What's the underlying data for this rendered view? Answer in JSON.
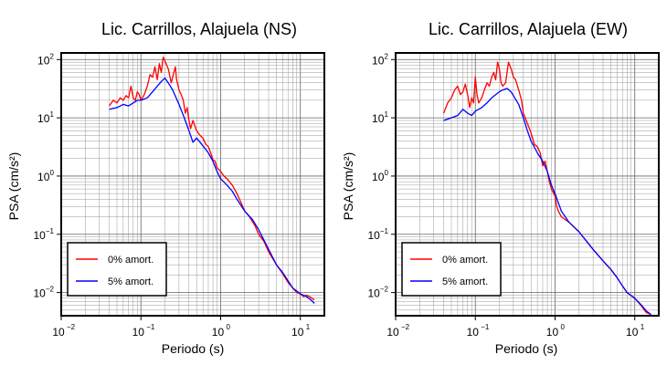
{
  "chart_data": [
    {
      "type": "line",
      "title": "Lic. Carrillos, Alajuela (NS)",
      "xlabel": "Periodo (s)",
      "ylabel": "PSA (cm/s²)",
      "x_scale": "log",
      "y_scale": "log",
      "xlim": [
        0.01,
        20
      ],
      "ylim": [
        0.004,
        130
      ],
      "x_ticks": [
        {
          "value": 0.01,
          "base": "10",
          "exp": "−2"
        },
        {
          "value": 0.1,
          "base": "10",
          "exp": "−1"
        },
        {
          "value": 1,
          "base": "10",
          "exp": "0"
        },
        {
          "value": 10,
          "base": "10",
          "exp": "1"
        }
      ],
      "y_ticks": [
        {
          "value": 0.01,
          "base": "10",
          "exp": "−2"
        },
        {
          "value": 0.1,
          "base": "10",
          "exp": "−1"
        },
        {
          "value": 1,
          "base": "10",
          "exp": "0"
        },
        {
          "value": 10,
          "base": "10",
          "exp": "1"
        },
        {
          "value": 100,
          "base": "10",
          "exp": "2"
        }
      ],
      "grid": true,
      "legend_position": "bottom-left",
      "series": [
        {
          "name": "0% amort.",
          "color": "#ff0000",
          "points": [
            [
              0.04,
              16
            ],
            [
              0.045,
              20
            ],
            [
              0.05,
              18
            ],
            [
              0.055,
              22
            ],
            [
              0.06,
              20
            ],
            [
              0.065,
              24
            ],
            [
              0.07,
              22
            ],
            [
              0.075,
              35
            ],
            [
              0.08,
              22
            ],
            [
              0.085,
              20
            ],
            [
              0.09,
              28
            ],
            [
              0.095,
              25
            ],
            [
              0.1,
              20
            ],
            [
              0.11,
              25
            ],
            [
              0.12,
              35
            ],
            [
              0.13,
              55
            ],
            [
              0.14,
              50
            ],
            [
              0.15,
              75
            ],
            [
              0.16,
              45
            ],
            [
              0.17,
              85
            ],
            [
              0.18,
              60
            ],
            [
              0.19,
              110
            ],
            [
              0.2,
              95
            ],
            [
              0.22,
              70
            ],
            [
              0.24,
              40
            ],
            [
              0.25,
              50
            ],
            [
              0.27,
              75
            ],
            [
              0.28,
              45
            ],
            [
              0.3,
              30
            ],
            [
              0.32,
              25
            ],
            [
              0.34,
              20
            ],
            [
              0.36,
              12
            ],
            [
              0.38,
              15
            ],
            [
              0.4,
              9
            ],
            [
              0.42,
              6.5
            ],
            [
              0.45,
              9
            ],
            [
              0.5,
              6
            ],
            [
              0.55,
              5
            ],
            [
              0.6,
              4.5
            ],
            [
              0.65,
              3.5
            ],
            [
              0.7,
              3.2
            ],
            [
              0.75,
              2.5
            ],
            [
              0.8,
              1.9
            ],
            [
              0.85,
              1.8
            ],
            [
              0.9,
              1.4
            ],
            [
              1.0,
              1.2
            ],
            [
              1.1,
              1.0
            ],
            [
              1.2,
              0.9
            ],
            [
              1.4,
              0.7
            ],
            [
              1.6,
              0.5
            ],
            [
              1.8,
              0.35
            ],
            [
              2.0,
              0.25
            ],
            [
              2.3,
              0.2
            ],
            [
              2.7,
              0.14
            ],
            [
              3.0,
              0.1
            ],
            [
              3.5,
              0.075
            ],
            [
              4.0,
              0.05
            ],
            [
              5.0,
              0.03
            ],
            [
              6.0,
              0.021
            ],
            [
              7.0,
              0.015
            ],
            [
              8.0,
              0.012
            ],
            [
              9.0,
              0.01
            ],
            [
              10,
              0.0095
            ],
            [
              11,
              0.0085
            ],
            [
              12,
              0.009
            ],
            [
              13,
              0.0085
            ],
            [
              14,
              0.008
            ],
            [
              15,
              0.0075
            ]
          ]
        },
        {
          "name": "5% amort.",
          "color": "#0000ff",
          "points": [
            [
              0.04,
              14
            ],
            [
              0.05,
              15
            ],
            [
              0.06,
              17
            ],
            [
              0.07,
              16
            ],
            [
              0.08,
              18
            ],
            [
              0.09,
              20
            ],
            [
              0.1,
              20
            ],
            [
              0.12,
              22
            ],
            [
              0.14,
              28
            ],
            [
              0.16,
              35
            ],
            [
              0.18,
              42
            ],
            [
              0.2,
              48
            ],
            [
              0.22,
              40
            ],
            [
              0.25,
              30
            ],
            [
              0.3,
              17
            ],
            [
              0.35,
              10
            ],
            [
              0.4,
              6
            ],
            [
              0.45,
              3.8
            ],
            [
              0.5,
              4.5
            ],
            [
              0.6,
              3.3
            ],
            [
              0.7,
              2.5
            ],
            [
              0.8,
              1.8
            ],
            [
              0.9,
              1.2
            ],
            [
              1.0,
              0.9
            ],
            [
              1.2,
              0.7
            ],
            [
              1.4,
              0.55
            ],
            [
              1.6,
              0.4
            ],
            [
              2.0,
              0.25
            ],
            [
              2.5,
              0.18
            ],
            [
              3.0,
              0.12
            ],
            [
              4.0,
              0.055
            ],
            [
              5.0,
              0.03
            ],
            [
              6.0,
              0.022
            ],
            [
              7.0,
              0.016
            ],
            [
              8.0,
              0.012
            ],
            [
              10,
              0.0095
            ],
            [
              12,
              0.0085
            ],
            [
              14,
              0.0072
            ],
            [
              15,
              0.0065
            ]
          ]
        }
      ]
    },
    {
      "type": "line",
      "title": "Lic. Carrillos, Alajuela (EW)",
      "xlabel": "Periodo (s)",
      "ylabel": "PSA (cm/s²)",
      "x_scale": "log",
      "y_scale": "log",
      "xlim": [
        0.01,
        20
      ],
      "ylim": [
        0.004,
        130
      ],
      "x_ticks": [
        {
          "value": 0.01,
          "base": "10",
          "exp": "−2"
        },
        {
          "value": 0.1,
          "base": "10",
          "exp": "−1"
        },
        {
          "value": 1,
          "base": "10",
          "exp": "0"
        },
        {
          "value": 10,
          "base": "10",
          "exp": "1"
        }
      ],
      "y_ticks": [
        {
          "value": 0.01,
          "base": "10",
          "exp": "−2"
        },
        {
          "value": 0.1,
          "base": "10",
          "exp": "−1"
        },
        {
          "value": 1,
          "base": "10",
          "exp": "0"
        },
        {
          "value": 10,
          "base": "10",
          "exp": "1"
        },
        {
          "value": 100,
          "base": "10",
          "exp": "2"
        }
      ],
      "grid": true,
      "legend_position": "bottom-left",
      "series": [
        {
          "name": "0% amort.",
          "color": "#ff0000",
          "points": [
            [
              0.04,
              12
            ],
            [
              0.045,
              18
            ],
            [
              0.05,
              22
            ],
            [
              0.055,
              30
            ],
            [
              0.06,
              35
            ],
            [
              0.065,
              25
            ],
            [
              0.07,
              28
            ],
            [
              0.075,
              38
            ],
            [
              0.08,
              25
            ],
            [
              0.085,
              15
            ],
            [
              0.09,
              22
            ],
            [
              0.095,
              18
            ],
            [
              0.1,
              50
            ],
            [
              0.105,
              25
            ],
            [
              0.11,
              18
            ],
            [
              0.12,
              22
            ],
            [
              0.13,
              30
            ],
            [
              0.14,
              40
            ],
            [
              0.15,
              35
            ],
            [
              0.16,
              50
            ],
            [
              0.17,
              60
            ],
            [
              0.18,
              45
            ],
            [
              0.19,
              90
            ],
            [
              0.2,
              70
            ],
            [
              0.21,
              40
            ],
            [
              0.22,
              35
            ],
            [
              0.24,
              40
            ],
            [
              0.26,
              90
            ],
            [
              0.28,
              70
            ],
            [
              0.3,
              50
            ],
            [
              0.32,
              45
            ],
            [
              0.35,
              30
            ],
            [
              0.38,
              20
            ],
            [
              0.4,
              12
            ],
            [
              0.45,
              8
            ],
            [
              0.5,
              5.5
            ],
            [
              0.55,
              3.5
            ],
            [
              0.6,
              3.2
            ],
            [
              0.65,
              2.5
            ],
            [
              0.7,
              1.5
            ],
            [
              0.75,
              1.8
            ],
            [
              0.8,
              1.2
            ],
            [
              0.85,
              0.8
            ],
            [
              0.9,
              0.6
            ],
            [
              1.0,
              0.45
            ],
            [
              1.05,
              0.3
            ],
            [
              1.1,
              0.25
            ],
            [
              1.2,
              0.2
            ],
            [
              1.5,
              0.16
            ],
            [
              2.0,
              0.11
            ],
            [
              2.5,
              0.075
            ],
            [
              3.0,
              0.055
            ],
            [
              4.0,
              0.035
            ],
            [
              5.0,
              0.025
            ],
            [
              6.0,
              0.018
            ],
            [
              7.0,
              0.013
            ],
            [
              8.0,
              0.01
            ],
            [
              10,
              0.008
            ],
            [
              12,
              0.006
            ],
            [
              14,
              0.0045
            ],
            [
              16,
              0.0042
            ]
          ]
        },
        {
          "name": "5% amort.",
          "color": "#0000ff",
          "points": [
            [
              0.04,
              9
            ],
            [
              0.05,
              10
            ],
            [
              0.06,
              11
            ],
            [
              0.07,
              14
            ],
            [
              0.08,
              12
            ],
            [
              0.09,
              11
            ],
            [
              0.1,
              13
            ],
            [
              0.12,
              15
            ],
            [
              0.14,
              18
            ],
            [
              0.16,
              22
            ],
            [
              0.18,
              25
            ],
            [
              0.2,
              28
            ],
            [
              0.22,
              30
            ],
            [
              0.25,
              32
            ],
            [
              0.28,
              28
            ],
            [
              0.3,
              24
            ],
            [
              0.35,
              17
            ],
            [
              0.4,
              10
            ],
            [
              0.45,
              6
            ],
            [
              0.5,
              4
            ],
            [
              0.6,
              2.5
            ],
            [
              0.7,
              1.8
            ],
            [
              0.8,
              1.2
            ],
            [
              0.9,
              0.7
            ],
            [
              1.0,
              0.5
            ],
            [
              1.2,
              0.25
            ],
            [
              1.5,
              0.16
            ],
            [
              2.0,
              0.11
            ],
            [
              2.5,
              0.075
            ],
            [
              3.0,
              0.055
            ],
            [
              4.0,
              0.035
            ],
            [
              5.0,
              0.025
            ],
            [
              6.0,
              0.018
            ],
            [
              7.0,
              0.013
            ],
            [
              8.0,
              0.01
            ],
            [
              10,
              0.008
            ],
            [
              12,
              0.0062
            ],
            [
              14,
              0.0048
            ],
            [
              16,
              0.0042
            ]
          ]
        }
      ]
    }
  ]
}
